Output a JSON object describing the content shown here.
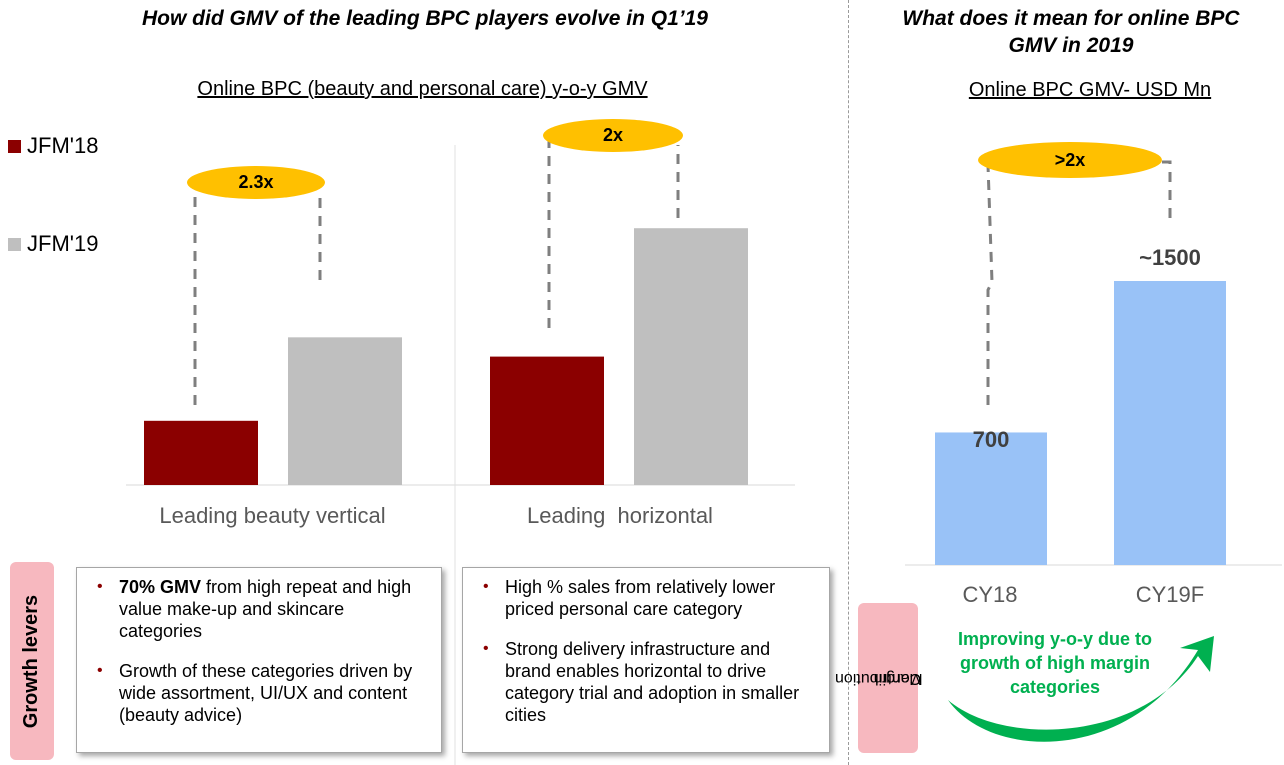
{
  "left": {
    "title": "How did GMV of the leading BPC players evolve in Q1’19",
    "subtitle": "Online BPC (beauty and personal care) y-o-y GMV",
    "legend": [
      {
        "label": "JFM'18",
        "color": "#8b0000"
      },
      {
        "label": "JFM'19",
        "color": "#bfbfbf"
      }
    ],
    "multipliers": [
      "2.3x",
      "2x"
    ],
    "growth_levers_label": "Growth levers",
    "box1": {
      "bullet1_bold": "70% GMV",
      "bullet1_rest": " from high repeat and high value make-up and skincare categories",
      "bullet2": "Growth of these categories driven by wide assortment, UI/UX and content (beauty advice)"
    },
    "box2": {
      "bullet1": "High % sales from relatively lower priced personal care category",
      "bullet2": "Strong delivery infrastructure and brand enables horizontal to drive category trial and adoption in smaller cities"
    }
  },
  "right": {
    "title_line1": "What does it mean for online BPC",
    "title_line2": "GMV in 2019",
    "subtitle": "Online BPC GMV- USD Mn",
    "multiplier": ">2x",
    "contribution_margin_line1": "Contribution",
    "contribution_margin_line2": "Margin",
    "improving_line1": "Improving y-o-y due to",
    "improving_line2": "growth of high margin",
    "improving_line3": "categories"
  },
  "chart_data": [
    {
      "type": "bar",
      "categories": [
        "Leading beauty vertical",
        "Leading  horizontal"
      ],
      "series": [
        {
          "name": "JFM'18",
          "values": [
            1.0,
            2.0
          ],
          "color": "#8b0000"
        },
        {
          "name": "JFM'19",
          "values": [
            2.3,
            4.0
          ],
          "color": "#bfbfbf"
        }
      ],
      "title": "Online BPC (beauty and personal care) y-o-y GMV",
      "legend": "left",
      "grid": false
    },
    {
      "type": "bar",
      "categories": [
        "CY18",
        "CY19F"
      ],
      "values": [
        700,
        1500
      ],
      "data_labels": [
        "700",
        "~1500"
      ],
      "color": "#99c2f7",
      "title": "Online BPC GMV- USD Mn",
      "ylim": [
        0,
        1600
      ],
      "grid": false
    }
  ],
  "colors": {
    "oval": "#ffc000",
    "lever_tab": "#f7b8bf",
    "arrow_green": "#00b050"
  }
}
